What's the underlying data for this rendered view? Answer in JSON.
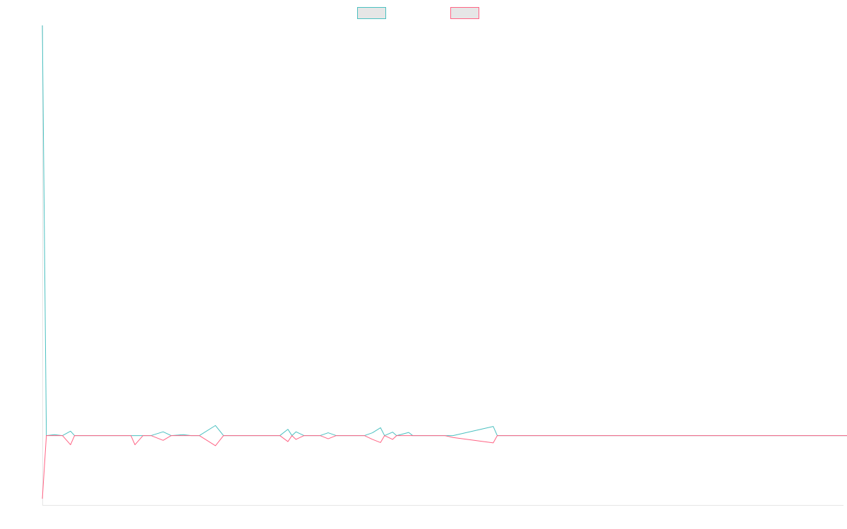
{
  "chart_data": {
    "type": "line",
    "title": "",
    "xlabel": "",
    "ylabel": "",
    "legend": "top-center",
    "grid": false,
    "x_count": 200,
    "ylim": [
      -22,
      130
    ],
    "series": [
      {
        "color": "#4bc0c0",
        "fill": "#e6e6e6",
        "points": [
          [
            0,
            130
          ],
          [
            1,
            0
          ],
          [
            3,
            0.3
          ],
          [
            5,
            0
          ],
          [
            7,
            1.4
          ],
          [
            8,
            0
          ],
          [
            10,
            0
          ],
          [
            12,
            0
          ],
          [
            16,
            0
          ],
          [
            19,
            0
          ],
          [
            22,
            0
          ],
          [
            23,
            0
          ],
          [
            25,
            0
          ],
          [
            27,
            0
          ],
          [
            30,
            1.2
          ],
          [
            32,
            0
          ],
          [
            35,
            0.3
          ],
          [
            37,
            0
          ],
          [
            39,
            0
          ],
          [
            43,
            3.2
          ],
          [
            45,
            0
          ],
          [
            55,
            0
          ],
          [
            59,
            0
          ],
          [
            61,
            2
          ],
          [
            62,
            0
          ],
          [
            63,
            1.2
          ],
          [
            65,
            0
          ],
          [
            69,
            0
          ],
          [
            71,
            0.9
          ],
          [
            73,
            0
          ],
          [
            79,
            0
          ],
          [
            80,
            0
          ],
          [
            82,
            0.9
          ],
          [
            84,
            2.5
          ],
          [
            85,
            0
          ],
          [
            87,
            1.1
          ],
          [
            88,
            0
          ],
          [
            91,
            1
          ],
          [
            92,
            0
          ],
          [
            100,
            0
          ],
          [
            102,
            0
          ],
          [
            112,
            2.9
          ],
          [
            113,
            0
          ],
          [
            115,
            0
          ],
          [
            118,
            0
          ],
          [
            120,
            0
          ],
          [
            200,
            0
          ]
        ]
      },
      {
        "color": "#ff6384",
        "fill": "#e6e6e6",
        "points": [
          [
            0,
            -20
          ],
          [
            1,
            0
          ],
          [
            3,
            0
          ],
          [
            5,
            0
          ],
          [
            7,
            -2.9
          ],
          [
            8,
            0
          ],
          [
            10,
            0
          ],
          [
            12,
            0
          ],
          [
            16,
            0
          ],
          [
            19,
            0
          ],
          [
            22,
            0
          ],
          [
            23,
            -2.9
          ],
          [
            25,
            0
          ],
          [
            27,
            0
          ],
          [
            30,
            -1.5
          ],
          [
            32,
            0
          ],
          [
            35,
            0
          ],
          [
            37,
            0
          ],
          [
            39,
            0
          ],
          [
            43,
            -3.2
          ],
          [
            45,
            0
          ],
          [
            55,
            0
          ],
          [
            59,
            0
          ],
          [
            61,
            -1.9
          ],
          [
            62,
            0
          ],
          [
            63,
            -1.2
          ],
          [
            65,
            0
          ],
          [
            69,
            0
          ],
          [
            71,
            -1
          ],
          [
            73,
            0
          ],
          [
            79,
            0
          ],
          [
            80,
            0
          ],
          [
            82,
            -1.2
          ],
          [
            84,
            -2.2
          ],
          [
            85,
            0
          ],
          [
            87,
            -1.2
          ],
          [
            88,
            0
          ],
          [
            91,
            0
          ],
          [
            92,
            0
          ],
          [
            100,
            0
          ],
          [
            102,
            -0.6
          ],
          [
            112,
            -2.3
          ],
          [
            113,
            0
          ],
          [
            115,
            0
          ],
          [
            118,
            0
          ],
          [
            120,
            0
          ],
          [
            200,
            0
          ]
        ]
      }
    ]
  }
}
